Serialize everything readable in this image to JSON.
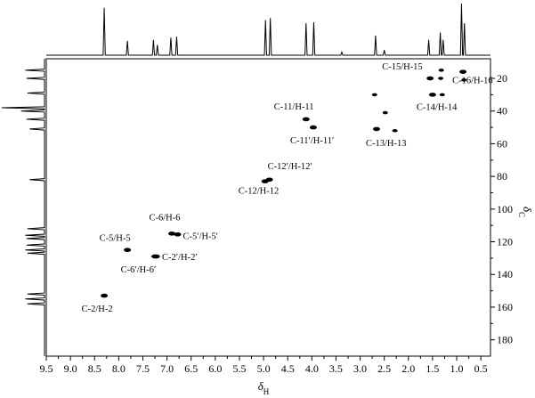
{
  "chart_data": {
    "type": "scatter",
    "subtype": "2D HSQC NMR contour plot",
    "title": "",
    "xlabel": {
      "symbol": "δ",
      "subscript": "H"
    },
    "ylabel": {
      "symbol": "δ",
      "subscript": "C"
    },
    "xlim": [
      9.5,
      0.3
    ],
    "ylim": [
      8,
      190
    ],
    "x_reversed": true,
    "x_ticks": [
      "9.5",
      "9.0",
      "8.5",
      "8.0",
      "7.5",
      "7.0",
      "6.5",
      "6.0",
      "5.5",
      "5.0",
      "4.5",
      "4.0",
      "3.5",
      "3.0",
      "2.5",
      "2.0",
      "1.5",
      "1.0",
      "0.5"
    ],
    "y_ticks": [
      "20",
      "40",
      "60",
      "80",
      "100",
      "120",
      "140",
      "160",
      "180"
    ],
    "grid": false,
    "legend": "none",
    "ink_color": "#000000",
    "cross_peaks": [
      {
        "label": "C-2/H-2",
        "x": 8.3,
        "y": 153
      },
      {
        "label": "C-5/H-5",
        "x": 7.82,
        "y": 125
      },
      {
        "label": "C-6/H-6",
        "x": 6.9,
        "y": 115
      },
      {
        "label": "C-5′/H-5′",
        "x": 6.78,
        "y": 115.5
      },
      {
        "label": "C-2′/H-2′",
        "x": 7.25,
        "y": 129
      },
      {
        "label": "C-6′/H-6′",
        "x": 7.22,
        "y": 129
      },
      {
        "label": "C-12′/H-12′",
        "x": 4.88,
        "y": 82
      },
      {
        "label": "C-12/H-12",
        "x": 4.97,
        "y": 83
      },
      {
        "label": "C-11/H-11",
        "x": 4.12,
        "y": 45
      },
      {
        "label": "C-11′/H-11′",
        "x": 3.97,
        "y": 50
      },
      {
        "label": "C-13/H-13",
        "x": 2.66,
        "y": 51
      },
      {
        "label": "C-14/H-14",
        "x": 1.5,
        "y": 30
      },
      {
        "label": "C-15/H-15",
        "x": 1.55,
        "y": 20
      },
      {
        "label": "C-16/H-16",
        "x": 0.87,
        "y": 16
      }
    ],
    "minor_peaks": [
      {
        "x": 2.7,
        "y": 30
      },
      {
        "x": 2.48,
        "y": 41
      },
      {
        "x": 2.28,
        "y": 52
      },
      {
        "x": 1.33,
        "y": 20
      },
      {
        "x": 1.3,
        "y": 30
      },
      {
        "x": 1.32,
        "y": 15
      },
      {
        "x": 0.85,
        "y": 21
      }
    ],
    "h1_spectrum_peaks": [
      {
        "x": 8.3,
        "h": 0.92
      },
      {
        "x": 7.82,
        "h": 0.28
      },
      {
        "x": 7.28,
        "h": 0.3
      },
      {
        "x": 7.2,
        "h": 0.2
      },
      {
        "x": 6.92,
        "h": 0.34
      },
      {
        "x": 6.8,
        "h": 0.36
      },
      {
        "x": 4.96,
        "h": 0.68
      },
      {
        "x": 4.86,
        "h": 0.72
      },
      {
        "x": 4.12,
        "h": 0.62
      },
      {
        "x": 3.96,
        "h": 0.64
      },
      {
        "x": 3.38,
        "h": 0.06
      },
      {
        "x": 2.68,
        "h": 0.38
      },
      {
        "x": 2.5,
        "h": 0.1
      },
      {
        "x": 1.58,
        "h": 0.3
      },
      {
        "x": 1.34,
        "h": 0.44
      },
      {
        "x": 1.28,
        "h": 0.3
      },
      {
        "x": 0.9,
        "h": 1.0
      },
      {
        "x": 0.84,
        "h": 0.62
      }
    ],
    "c13_spectrum_peaks": [
      {
        "y": 15,
        "h": 0.45
      },
      {
        "y": 20,
        "h": 0.42
      },
      {
        "y": 29,
        "h": 0.4
      },
      {
        "y": 38,
        "h": 1.0
      },
      {
        "y": 40,
        "h": 0.55
      },
      {
        "y": 45,
        "h": 0.42
      },
      {
        "y": 51,
        "h": 0.35
      },
      {
        "y": 82,
        "h": 0.35
      },
      {
        "y": 112,
        "h": 0.4
      },
      {
        "y": 116,
        "h": 0.45
      },
      {
        "y": 118,
        "h": 0.42
      },
      {
        "y": 122,
        "h": 0.42
      },
      {
        "y": 125,
        "h": 0.45
      },
      {
        "y": 127,
        "h": 0.4
      },
      {
        "y": 152,
        "h": 0.4
      },
      {
        "y": 155,
        "h": 0.45
      },
      {
        "y": 158,
        "h": 0.4
      }
    ]
  }
}
